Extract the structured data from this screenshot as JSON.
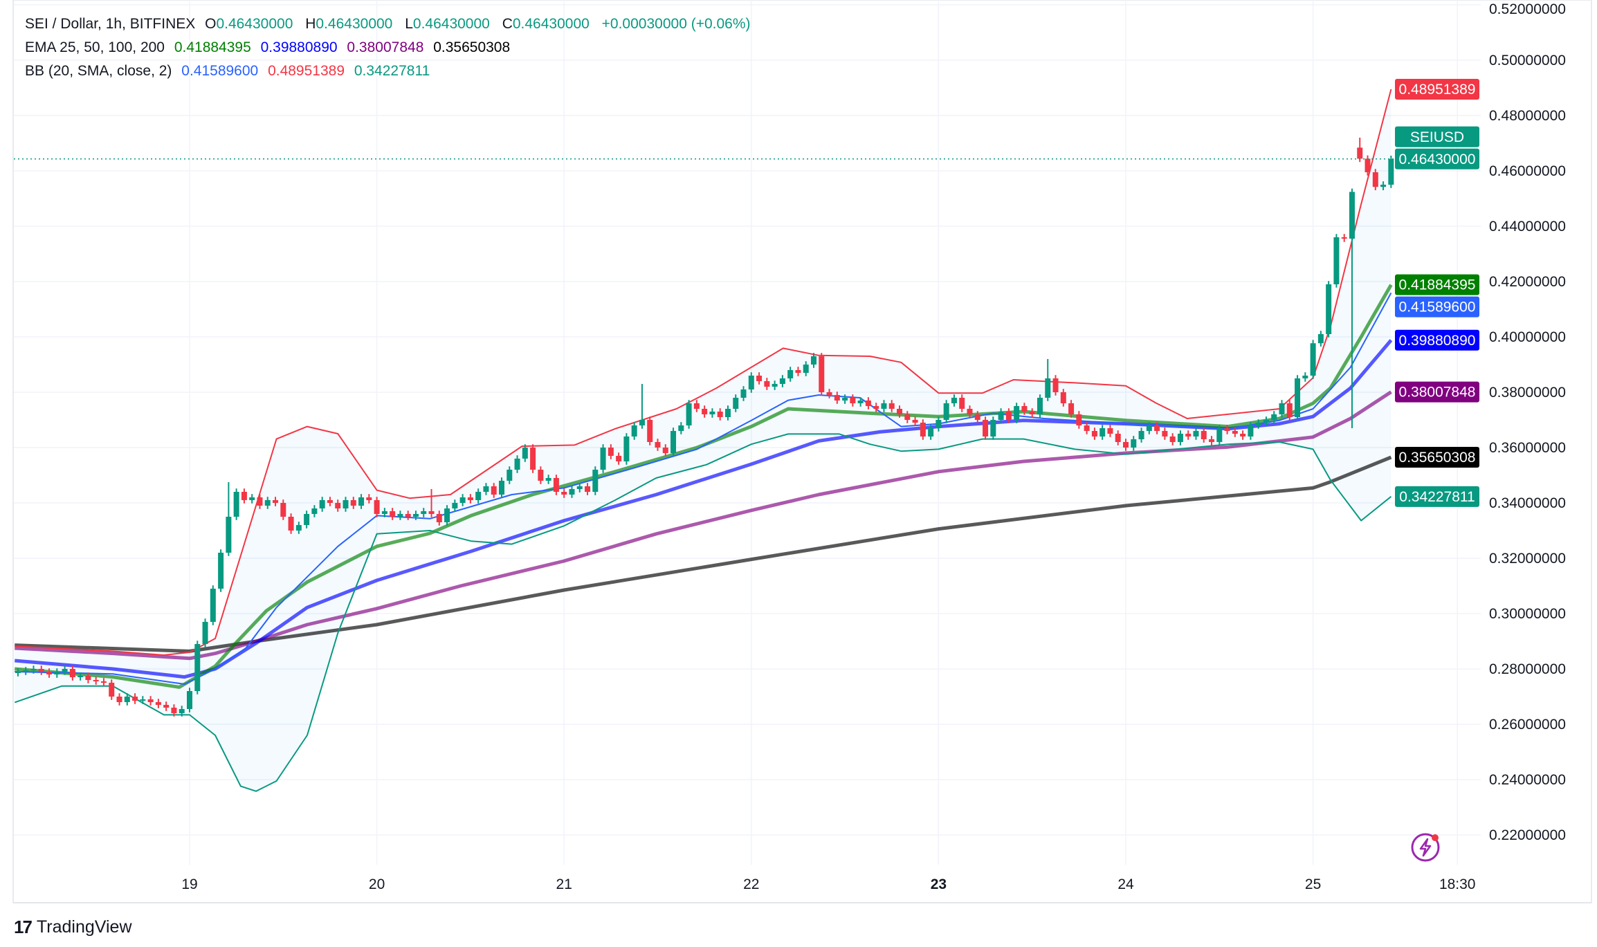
{
  "legend": {
    "symbol": "SEI / Dollar, 1h, BITFINEX",
    "o_label": "O",
    "o": "0.46430000",
    "h_label": "H",
    "h": "0.46430000",
    "l_label": "L",
    "l": "0.46430000",
    "c_label": "C",
    "c": "0.46430000",
    "change": "+0.00030000 (+0.06%)",
    "ema_label": "EMA 25, 50, 100, 200",
    "ema_values": [
      "0.41884395",
      "0.39880890",
      "0.38007848",
      "0.35650308"
    ],
    "bb_label": "BB (20, SMA, close, 2)",
    "bb_values": [
      "0.41589600",
      "0.48951389",
      "0.34227811"
    ]
  },
  "branding": {
    "name": "TradingView"
  },
  "colors": {
    "up": "#089981",
    "down": "#f23645",
    "ema25": "#008000",
    "ema50": "#0000ff",
    "ema100": "#800080",
    "ema200": "#000000",
    "bb_basis": "#2962ff",
    "bb_upper": "#f23645",
    "bb_lower": "#089981",
    "bb_fill": "#2196f3"
  },
  "chart_data": {
    "type": "candlestick",
    "symbol": "SEIUSD",
    "interval": "1h",
    "ylim": [
      0.21,
      0.52
    ],
    "y_ticks": [
      "0.22000000",
      "0.24000000",
      "0.26000000",
      "0.28000000",
      "0.30000000",
      "0.32000000",
      "0.34000000",
      "0.36000000",
      "0.38000000",
      "0.40000000",
      "0.42000000",
      "0.44000000",
      "0.46000000",
      "0.48000000",
      "0.50000000",
      "0.52000000"
    ],
    "x_ticks": [
      {
        "label": "19",
        "day": 19
      },
      {
        "label": "20",
        "day": 20
      },
      {
        "label": "21",
        "day": 21
      },
      {
        "label": "22",
        "day": 22
      },
      {
        "label": "23",
        "day": 23,
        "bold": true
      },
      {
        "label": "24",
        "day": 24
      },
      {
        "label": "25",
        "day": 25
      },
      {
        "label": "18:30",
        "day": 25.771
      }
    ],
    "grid": true,
    "last_price": 0.4643,
    "candles": {
      "start": "18 02:00",
      "closes": [
        0.279,
        0.2795,
        0.28,
        0.279,
        0.278,
        0.279,
        0.28,
        0.277,
        0.2775,
        0.276,
        0.2755,
        0.275,
        0.27,
        0.268,
        0.27,
        0.2685,
        0.269,
        0.268,
        0.267,
        0.266,
        0.264,
        0.2655,
        0.272,
        0.289,
        0.297,
        0.309,
        0.322,
        0.335,
        0.344,
        0.341,
        0.342,
        0.339,
        0.341,
        0.34,
        0.335,
        0.33,
        0.332,
        0.336,
        0.338,
        0.341,
        0.34,
        0.338,
        0.341,
        0.339,
        0.342,
        0.341,
        0.336,
        0.337,
        0.335,
        0.336,
        0.335,
        0.336,
        0.337,
        0.336,
        0.333,
        0.338,
        0.34,
        0.342,
        0.341,
        0.344,
        0.346,
        0.343,
        0.348,
        0.352,
        0.356,
        0.36,
        0.352,
        0.348,
        0.349,
        0.344,
        0.343,
        0.345,
        0.346,
        0.344,
        0.352,
        0.36,
        0.357,
        0.355,
        0.364,
        0.368,
        0.37,
        0.362,
        0.36,
        0.358,
        0.366,
        0.368,
        0.376,
        0.374,
        0.372,
        0.373,
        0.371,
        0.374,
        0.378,
        0.381,
        0.386,
        0.384,
        0.382,
        0.383,
        0.385,
        0.388,
        0.387,
        0.39,
        0.393,
        0.38,
        0.379,
        0.377,
        0.378,
        0.376,
        0.377,
        0.375,
        0.374,
        0.376,
        0.374,
        0.372,
        0.37,
        0.369,
        0.364,
        0.367,
        0.37,
        0.376,
        0.378,
        0.374,
        0.372,
        0.37,
        0.364,
        0.37,
        0.373,
        0.37,
        0.375,
        0.373,
        0.372,
        0.378,
        0.385,
        0.38,
        0.376,
        0.372,
        0.368,
        0.366,
        0.364,
        0.367,
        0.365,
        0.362,
        0.36,
        0.363,
        0.366,
        0.368,
        0.366,
        0.364,
        0.362,
        0.365,
        0.364,
        0.366,
        0.363,
        0.362,
        0.367,
        0.366,
        0.365,
        0.364,
        0.368,
        0.369,
        0.37,
        0.372,
        0.376,
        0.371,
        0.385,
        0.386,
        0.3977,
        0.401,
        0.419,
        0.436,
        0.4355,
        0.4524,
        0.4644,
        0.4595,
        0.4542,
        0.455,
        0.4643
      ],
      "overrides": [
        {
          "t": "19 05:00",
          "high": 0.3475
        },
        {
          "t": "20 07:00",
          "high": 0.345
        },
        {
          "t": "21 10:00",
          "high": 0.383
        },
        {
          "t": "23 14:00",
          "high": 0.392
        },
        {
          "t": "25 05:00",
          "low": 0.367
        },
        {
          "t": "25 06:00",
          "open": 0.4684,
          "high": 0.472
        }
      ]
    },
    "series": [
      {
        "name": "EMA 25",
        "key": "ema25",
        "points": [
          [
            18.066,
            0.28
          ],
          [
            18.59,
            0.2771
          ],
          [
            18.945,
            0.2734
          ],
          [
            19.137,
            0.281
          ],
          [
            19.246,
            0.2893
          ],
          [
            19.41,
            0.301
          ],
          [
            19.628,
            0.3114
          ],
          [
            20,
            0.3243
          ],
          [
            20.284,
            0.329
          ],
          [
            20.503,
            0.3354
          ],
          [
            20.831,
            0.343
          ],
          [
            21.273,
            0.3513
          ],
          [
            21.71,
            0.36
          ],
          [
            22,
            0.3676
          ],
          [
            22.197,
            0.374
          ],
          [
            22.634,
            0.3724
          ],
          [
            23,
            0.3712
          ],
          [
            23.454,
            0.373
          ],
          [
            24,
            0.3698
          ],
          [
            24.546,
            0.3676
          ],
          [
            24.82,
            0.3705
          ],
          [
            25,
            0.376
          ],
          [
            25.093,
            0.3815
          ],
          [
            25.257,
            0.4
          ],
          [
            25.417,
            0.4188
          ]
        ]
      },
      {
        "name": "EMA 50",
        "key": "ema50",
        "points": [
          [
            18.066,
            0.283
          ],
          [
            18.59,
            0.28
          ],
          [
            18.973,
            0.2771
          ],
          [
            19.137,
            0.28
          ],
          [
            19.355,
            0.2893
          ],
          [
            19.628,
            0.3022
          ],
          [
            20,
            0.312
          ],
          [
            20.503,
            0.3225
          ],
          [
            21,
            0.3336
          ],
          [
            21.492,
            0.343
          ],
          [
            22,
            0.354
          ],
          [
            22.36,
            0.3624
          ],
          [
            22.69,
            0.3657
          ],
          [
            23,
            0.3676
          ],
          [
            23.454,
            0.3698
          ],
          [
            24,
            0.3686
          ],
          [
            24.546,
            0.3668
          ],
          [
            24.82,
            0.3686
          ],
          [
            25,
            0.3712
          ],
          [
            25.2,
            0.3815
          ],
          [
            25.417,
            0.3988
          ]
        ]
      },
      {
        "name": "EMA 100",
        "key": "ema100",
        "points": [
          [
            18.066,
            0.2875
          ],
          [
            18.59,
            0.2856
          ],
          [
            19,
            0.2838
          ],
          [
            19.137,
            0.2856
          ],
          [
            19.355,
            0.29
          ],
          [
            19.628,
            0.296
          ],
          [
            20,
            0.3018
          ],
          [
            20.448,
            0.31
          ],
          [
            21,
            0.319
          ],
          [
            21.492,
            0.3288
          ],
          [
            22,
            0.3373
          ],
          [
            22.36,
            0.343
          ],
          [
            23,
            0.3513
          ],
          [
            23.454,
            0.355
          ],
          [
            24,
            0.358
          ],
          [
            24.546,
            0.3602
          ],
          [
            25,
            0.3638
          ],
          [
            25.2,
            0.3705
          ],
          [
            25.417,
            0.3801
          ]
        ]
      },
      {
        "name": "EMA 200",
        "key": "ema200",
        "points": [
          [
            18.066,
            0.2886
          ],
          [
            19,
            0.2864
          ],
          [
            19.355,
            0.29
          ],
          [
            20,
            0.296
          ],
          [
            21,
            0.3085
          ],
          [
            22,
            0.3196
          ],
          [
            23,
            0.3306
          ],
          [
            24,
            0.339
          ],
          [
            25,
            0.3454
          ],
          [
            25.093,
            0.3476
          ],
          [
            25.417,
            0.3565
          ]
        ]
      },
      {
        "name": "BB basis",
        "key": "bb_basis",
        "points": [
          [
            18.066,
            0.279
          ],
          [
            18.59,
            0.2782
          ],
          [
            18.973,
            0.2745
          ],
          [
            19.137,
            0.28
          ],
          [
            19.3,
            0.2875
          ],
          [
            19.464,
            0.3022
          ],
          [
            19.792,
            0.3243
          ],
          [
            20,
            0.3354
          ],
          [
            20.284,
            0.3343
          ],
          [
            20.721,
            0.343
          ],
          [
            21,
            0.3454
          ],
          [
            21.383,
            0.3528
          ],
          [
            21.71,
            0.3594
          ],
          [
            22,
            0.3698
          ],
          [
            22.197,
            0.3771
          ],
          [
            22.36,
            0.379
          ],
          [
            22.58,
            0.378
          ],
          [
            22.8,
            0.3676
          ],
          [
            23,
            0.3686
          ],
          [
            23.29,
            0.3724
          ],
          [
            23.563,
            0.3705
          ],
          [
            24,
            0.3686
          ],
          [
            24.546,
            0.3668
          ],
          [
            24.82,
            0.3698
          ],
          [
            25,
            0.374
          ],
          [
            25.2,
            0.389
          ],
          [
            25.417,
            0.4159
          ]
        ]
      },
      {
        "name": "BB upper",
        "key": "bb_upper",
        "points": [
          [
            18.066,
            0.2882
          ],
          [
            18.59,
            0.2864
          ],
          [
            18.863,
            0.285
          ],
          [
            19,
            0.286
          ],
          [
            19.137,
            0.291
          ],
          [
            19.246,
            0.315
          ],
          [
            19.464,
            0.3631
          ],
          [
            19.628,
            0.3676
          ],
          [
            19.792,
            0.365
          ],
          [
            20,
            0.3446
          ],
          [
            20.175,
            0.3417
          ],
          [
            20.393,
            0.343
          ],
          [
            20.776,
            0.3605
          ],
          [
            21.055,
            0.3609
          ],
          [
            21.273,
            0.3668
          ],
          [
            21.6,
            0.374
          ],
          [
            21.814,
            0.3815
          ],
          [
            22.17,
            0.3959
          ],
          [
            22.36,
            0.3933
          ],
          [
            22.634,
            0.393
          ],
          [
            22.8,
            0.3908
          ],
          [
            23,
            0.3797
          ],
          [
            23.235,
            0.3797
          ],
          [
            23.4,
            0.3845
          ],
          [
            23.727,
            0.3834
          ],
          [
            24,
            0.3823
          ],
          [
            24.164,
            0.376
          ],
          [
            24.328,
            0.3705
          ],
          [
            24.82,
            0.374
          ],
          [
            25,
            0.3852
          ],
          [
            25.093,
            0.4037
          ],
          [
            25.257,
            0.448
          ],
          [
            25.417,
            0.4895
          ]
        ]
      },
      {
        "name": "BB lower",
        "key": "bb_lower",
        "points": [
          [
            18.066,
            0.2679
          ],
          [
            18.317,
            0.2738
          ],
          [
            18.59,
            0.2738
          ],
          [
            18.863,
            0.2634
          ],
          [
            19,
            0.2634
          ],
          [
            19.137,
            0.256
          ],
          [
            19.273,
            0.2376
          ],
          [
            19.355,
            0.2358
          ],
          [
            19.464,
            0.2395
          ],
          [
            19.628,
            0.256
          ],
          [
            19.792,
            0.293
          ],
          [
            20,
            0.3288
          ],
          [
            20.284,
            0.33
          ],
          [
            20.503,
            0.3262
          ],
          [
            20.721,
            0.3251
          ],
          [
            21,
            0.3317
          ],
          [
            21.273,
            0.341
          ],
          [
            21.492,
            0.349
          ],
          [
            21.76,
            0.3538
          ],
          [
            22,
            0.3612
          ],
          [
            22.197,
            0.3649
          ],
          [
            22.47,
            0.3649
          ],
          [
            22.634,
            0.3612
          ],
          [
            22.8,
            0.3587
          ],
          [
            23,
            0.3594
          ],
          [
            23.235,
            0.3631
          ],
          [
            23.454,
            0.3631
          ],
          [
            23.727,
            0.3594
          ],
          [
            24,
            0.3576
          ],
          [
            24.273,
            0.3594
          ],
          [
            24.546,
            0.3612
          ],
          [
            24.82,
            0.362
          ],
          [
            25,
            0.3594
          ],
          [
            25.093,
            0.3483
          ],
          [
            25.257,
            0.3336
          ],
          [
            25.417,
            0.3423
          ]
        ]
      }
    ],
    "price_tags": [
      {
        "key": "bb_upper",
        "value": "0.48951389",
        "price": 0.48951389,
        "color": "#f23645"
      },
      {
        "key": "last",
        "value": "0.46430000",
        "price": 0.4643,
        "color": "#089981",
        "symbol_label": "SEIUSD"
      },
      {
        "key": "ema25",
        "value": "0.41884395",
        "price": 0.41884395,
        "color": "#008000"
      },
      {
        "key": "bb_basis",
        "value": "0.41589600",
        "price": 0.415896,
        "color": "#2962ff"
      },
      {
        "key": "ema50",
        "value": "0.39880890",
        "price": 0.3988089,
        "color": "#0000ff"
      },
      {
        "key": "ema100",
        "value": "0.38007848",
        "price": 0.38007848,
        "color": "#800080"
      },
      {
        "key": "ema200",
        "value": "0.35650308",
        "price": 0.35650308,
        "color": "#000000"
      },
      {
        "key": "bb_lower",
        "value": "0.34227811",
        "price": 0.34227811,
        "color": "#089981"
      }
    ]
  }
}
